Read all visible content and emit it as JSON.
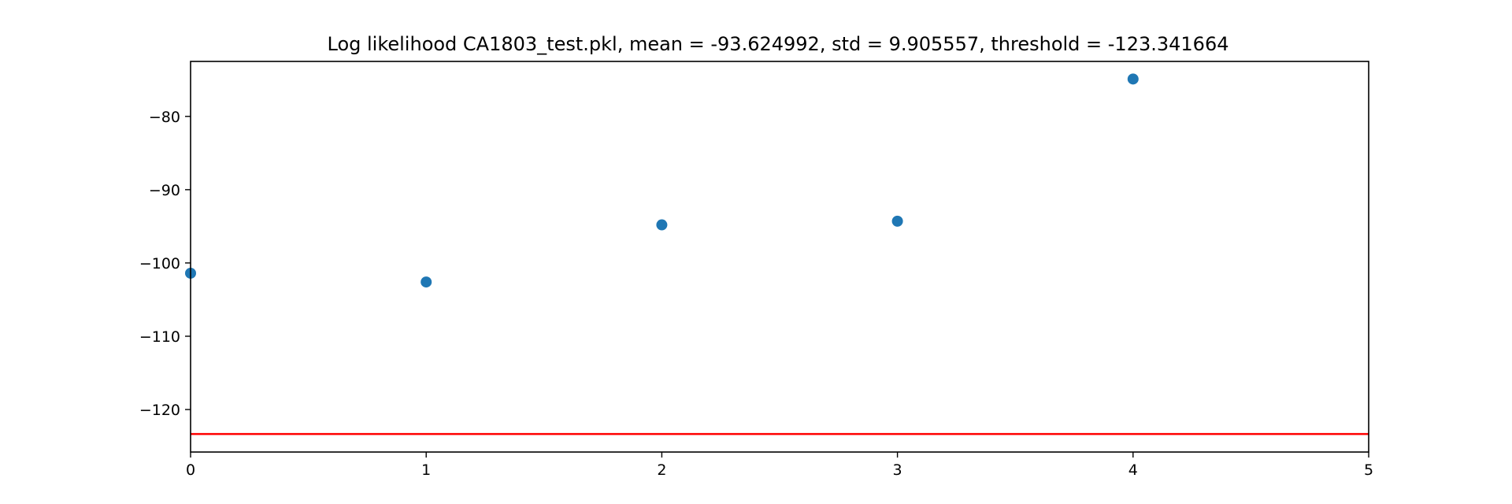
{
  "chart_data": {
    "type": "scatter",
    "title": "Log likelihood CA1803_test.pkl, mean = -93.624992, std = 9.905557, threshold = -123.341664",
    "xlabel": "",
    "ylabel": "",
    "xlim": [
      0,
      5
    ],
    "ylim": [
      -125.8,
      -72.5
    ],
    "x_ticks": [
      0,
      1,
      2,
      3,
      4,
      5
    ],
    "y_ticks": [
      -120,
      -110,
      -100,
      -90,
      -80
    ],
    "grid": false,
    "points": [
      {
        "x": 0,
        "y": -101.4
      },
      {
        "x": 1,
        "y": -102.6
      },
      {
        "x": 2,
        "y": -94.8
      },
      {
        "x": 3,
        "y": -94.3
      },
      {
        "x": 4,
        "y": -74.9
      }
    ],
    "threshold": -123.341664,
    "colors": {
      "points": "#1f77b4",
      "threshold_line": "#ff0000",
      "axes": "#000000"
    }
  }
}
